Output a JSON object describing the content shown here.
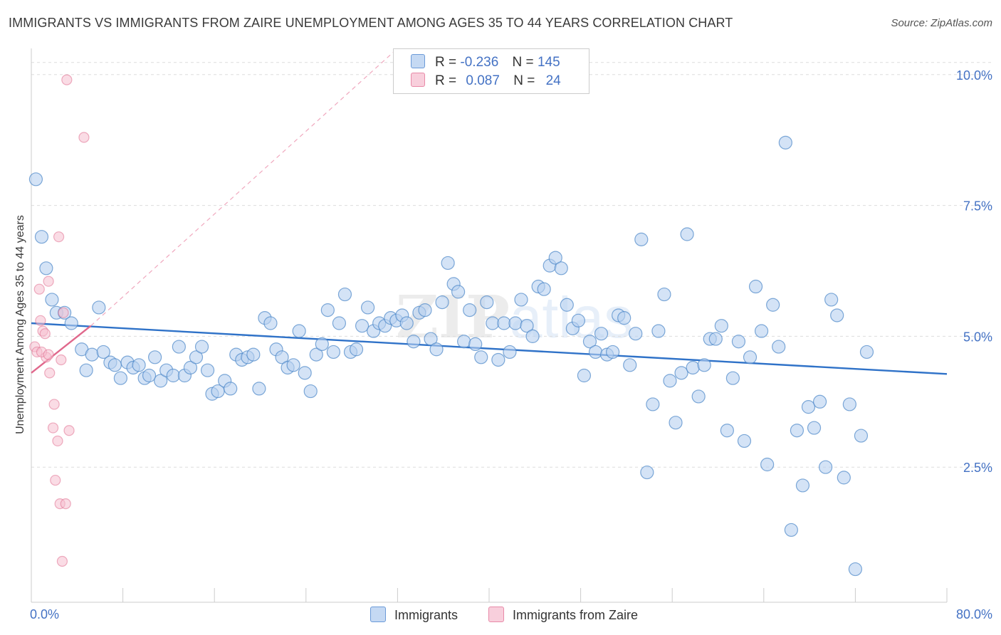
{
  "title": "IMMIGRANTS VS IMMIGRANTS FROM ZAIRE UNEMPLOYMENT AMONG AGES 35 TO 44 YEARS CORRELATION CHART",
  "source": "Source: ZipAtlas.com",
  "watermark": {
    "zip": "ZIP",
    "atlas": "atlas"
  },
  "legend": {
    "rows": [
      {
        "r_label": "R =",
        "r_value": "-0.236",
        "n_label": "N =",
        "n_value": "145",
        "color": "#aac8f0"
      },
      {
        "r_label": "R =",
        "r_value": "0.087",
        "n_label": "N =",
        "n_value": "24",
        "color": "#f5b8cc"
      }
    ]
  },
  "bottom_legend": {
    "s1": "Immigrants",
    "s2": "Immigrants from Zaire"
  },
  "chart_data": {
    "type": "scatter",
    "ylabel": "Unemployment Among Ages 35 to 44 years",
    "xlim": [
      0,
      80
    ],
    "ylim": [
      0,
      10.5
    ],
    "x_tick_labels": [
      "0.0%",
      "80.0%"
    ],
    "y_ticks": [
      2.5,
      5.0,
      7.5,
      10.0
    ],
    "y_tick_labels": [
      "2.5%",
      "5.0%",
      "7.5%",
      "10.0%"
    ],
    "grid": "horizontal dashed",
    "series": [
      {
        "name": "Immigrants",
        "color": "#4a86c8",
        "fill": "#b8d0f0",
        "trend": {
          "x": [
            0,
            80
          ],
          "y": [
            5.25,
            4.28
          ]
        },
        "points": [
          [
            0.4,
            8.0
          ],
          [
            0.9,
            6.9
          ],
          [
            1.3,
            6.3
          ],
          [
            1.8,
            5.7
          ],
          [
            2.2,
            5.45
          ],
          [
            2.9,
            5.45
          ],
          [
            3.5,
            5.25
          ],
          [
            4.4,
            4.75
          ],
          [
            4.8,
            4.35
          ],
          [
            5.3,
            4.65
          ],
          [
            5.9,
            5.55
          ],
          [
            6.3,
            4.7
          ],
          [
            6.9,
            4.5
          ],
          [
            7.3,
            4.45
          ],
          [
            7.8,
            4.2
          ],
          [
            8.4,
            4.5
          ],
          [
            8.9,
            4.4
          ],
          [
            9.4,
            4.45
          ],
          [
            9.9,
            4.2
          ],
          [
            10.3,
            4.25
          ],
          [
            10.8,
            4.6
          ],
          [
            11.3,
            4.15
          ],
          [
            11.8,
            4.35
          ],
          [
            12.4,
            4.25
          ],
          [
            12.9,
            4.8
          ],
          [
            13.4,
            4.25
          ],
          [
            13.9,
            4.4
          ],
          [
            14.4,
            4.6
          ],
          [
            14.9,
            4.8
          ],
          [
            15.4,
            4.35
          ],
          [
            15.8,
            3.9
          ],
          [
            16.3,
            3.95
          ],
          [
            16.9,
            4.15
          ],
          [
            17.4,
            4.0
          ],
          [
            17.9,
            4.65
          ],
          [
            18.4,
            4.55
          ],
          [
            18.9,
            4.6
          ],
          [
            19.4,
            4.65
          ],
          [
            19.9,
            4.0
          ],
          [
            20.4,
            5.35
          ],
          [
            20.9,
            5.25
          ],
          [
            21.4,
            4.75
          ],
          [
            21.9,
            4.6
          ],
          [
            22.4,
            4.4
          ],
          [
            22.9,
            4.45
          ],
          [
            23.4,
            5.1
          ],
          [
            23.9,
            4.3
          ],
          [
            24.4,
            3.95
          ],
          [
            24.9,
            4.65
          ],
          [
            25.4,
            4.85
          ],
          [
            25.9,
            5.5
          ],
          [
            26.4,
            4.7
          ],
          [
            26.9,
            5.25
          ],
          [
            27.4,
            5.8
          ],
          [
            27.9,
            4.7
          ],
          [
            28.4,
            4.75
          ],
          [
            28.9,
            5.2
          ],
          [
            29.4,
            5.55
          ],
          [
            29.9,
            5.1
          ],
          [
            30.4,
            5.25
          ],
          [
            30.9,
            5.2
          ],
          [
            31.4,
            5.35
          ],
          [
            31.9,
            5.3
          ],
          [
            32.4,
            5.4
          ],
          [
            32.8,
            5.25
          ],
          [
            33.4,
            4.9
          ],
          [
            33.9,
            5.45
          ],
          [
            34.4,
            5.5
          ],
          [
            34.9,
            4.95
          ],
          [
            35.4,
            4.75
          ],
          [
            35.9,
            5.65
          ],
          [
            36.4,
            6.4
          ],
          [
            36.9,
            6.0
          ],
          [
            37.3,
            5.85
          ],
          [
            37.8,
            4.9
          ],
          [
            38.3,
            5.5
          ],
          [
            38.8,
            4.85
          ],
          [
            39.3,
            4.6
          ],
          [
            39.8,
            5.65
          ],
          [
            40.3,
            5.25
          ],
          [
            40.8,
            4.55
          ],
          [
            41.3,
            5.25
          ],
          [
            41.8,
            4.7
          ],
          [
            42.3,
            5.25
          ],
          [
            42.8,
            5.7
          ],
          [
            43.3,
            5.2
          ],
          [
            43.8,
            5.0
          ],
          [
            44.3,
            5.95
          ],
          [
            44.8,
            5.9
          ],
          [
            45.3,
            6.35
          ],
          [
            45.8,
            6.5
          ],
          [
            46.3,
            6.3
          ],
          [
            46.8,
            5.6
          ],
          [
            47.3,
            5.15
          ],
          [
            47.8,
            5.3
          ],
          [
            48.3,
            4.25
          ],
          [
            48.8,
            4.9
          ],
          [
            49.3,
            4.7
          ],
          [
            49.8,
            5.05
          ],
          [
            50.3,
            4.65
          ],
          [
            50.8,
            4.7
          ],
          [
            51.3,
            5.4
          ],
          [
            51.8,
            5.35
          ],
          [
            52.3,
            4.45
          ],
          [
            52.8,
            5.05
          ],
          [
            53.3,
            6.85
          ],
          [
            53.8,
            2.4
          ],
          [
            54.3,
            3.7
          ],
          [
            54.8,
            5.1
          ],
          [
            55.3,
            5.8
          ],
          [
            55.8,
            4.15
          ],
          [
            56.3,
            3.35
          ],
          [
            56.8,
            4.3
          ],
          [
            57.3,
            6.95
          ],
          [
            57.8,
            4.4
          ],
          [
            58.3,
            3.85
          ],
          [
            58.8,
            4.45
          ],
          [
            59.3,
            4.95
          ],
          [
            59.8,
            4.95
          ],
          [
            60.3,
            5.2
          ],
          [
            60.8,
            3.2
          ],
          [
            61.3,
            4.2
          ],
          [
            61.8,
            4.9
          ],
          [
            62.3,
            3.0
          ],
          [
            62.8,
            4.6
          ],
          [
            63.3,
            5.95
          ],
          [
            63.8,
            5.1
          ],
          [
            64.3,
            2.55
          ],
          [
            64.8,
            5.6
          ],
          [
            65.3,
            4.8
          ],
          [
            65.9,
            8.7
          ],
          [
            66.4,
            1.3
          ],
          [
            66.9,
            3.2
          ],
          [
            67.4,
            2.15
          ],
          [
            67.9,
            3.65
          ],
          [
            68.4,
            3.25
          ],
          [
            68.9,
            3.75
          ],
          [
            69.4,
            2.5
          ],
          [
            69.9,
            5.7
          ],
          [
            70.4,
            5.4
          ],
          [
            71.0,
            2.3
          ],
          [
            71.5,
            3.7
          ],
          [
            72.0,
            0.55
          ],
          [
            72.5,
            3.1
          ],
          [
            73.0,
            4.7
          ]
        ]
      },
      {
        "name": "Immigrants from Zaire",
        "color": "#e07090",
        "fill": "#f5c0d0",
        "trend": {
          "x": [
            0,
            5.2
          ],
          "y": [
            4.3,
            5.2
          ]
        },
        "trend_ext": {
          "x": [
            5.2,
            32
          ],
          "y": [
            5.2,
            10.5
          ]
        },
        "points": [
          [
            0.3,
            4.8
          ],
          [
            0.5,
            4.7
          ],
          [
            0.7,
            5.9
          ],
          [
            0.8,
            5.3
          ],
          [
            1.0,
            5.1
          ],
          [
            1.2,
            5.05
          ],
          [
            1.3,
            4.6
          ],
          [
            1.5,
            6.05
          ],
          [
            1.6,
            4.3
          ],
          [
            1.9,
            3.25
          ],
          [
            2.0,
            3.7
          ],
          [
            2.1,
            2.25
          ],
          [
            2.3,
            3.0
          ],
          [
            2.4,
            6.9
          ],
          [
            2.5,
            1.8
          ],
          [
            2.6,
            4.55
          ],
          [
            2.7,
            0.7
          ],
          [
            2.8,
            5.45
          ],
          [
            3.0,
            1.8
          ],
          [
            3.1,
            9.9
          ],
          [
            3.3,
            3.2
          ],
          [
            4.6,
            8.8
          ],
          [
            0.9,
            4.7
          ],
          [
            1.5,
            4.65
          ]
        ]
      }
    ]
  }
}
